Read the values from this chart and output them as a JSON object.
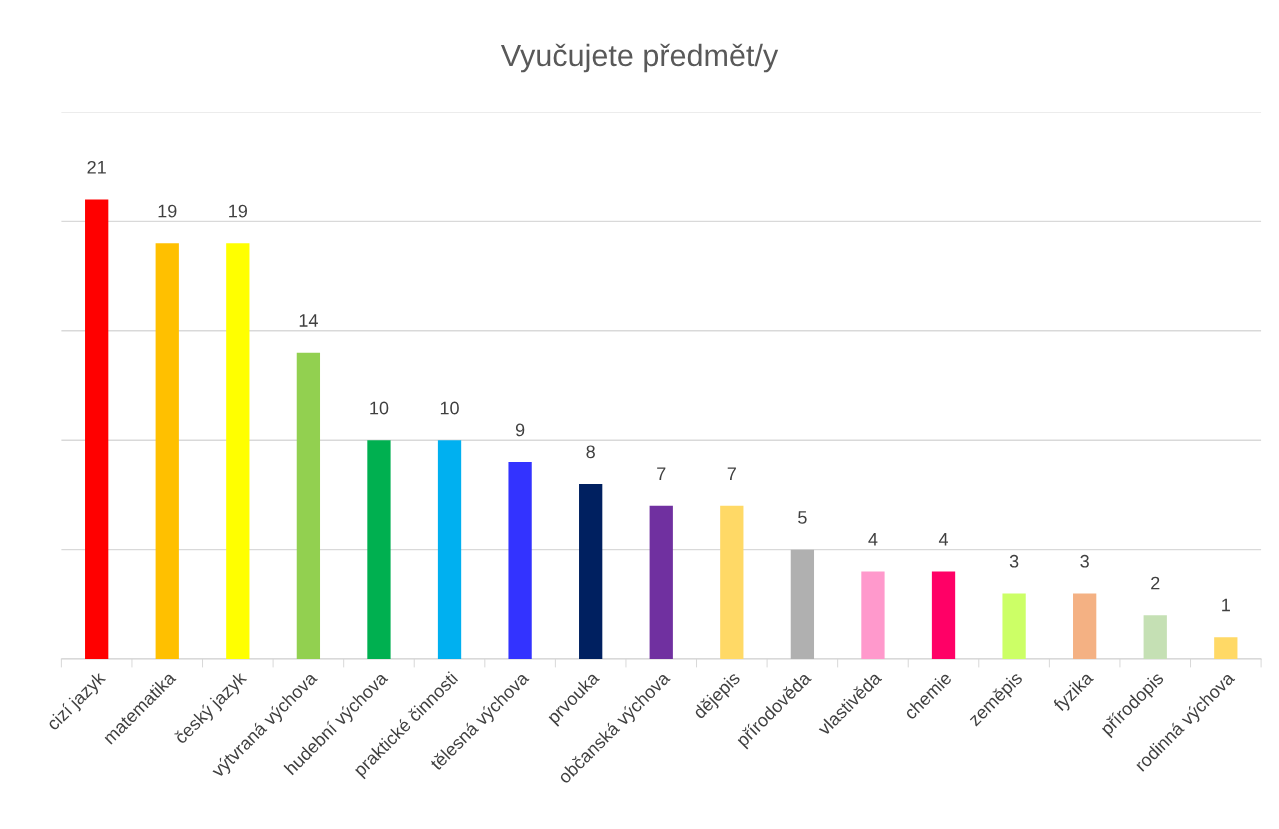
{
  "chart_data": {
    "type": "bar",
    "title": "Vyučujete předmět/y",
    "categories": [
      "cizí jazyk",
      "matematika",
      "český jazyk",
      "výtvraná výchova",
      "hudební výchova",
      "praktické činnosti",
      "tělesná výchova",
      "prvouka",
      "občanská výchova",
      "dějepis",
      "přírodověda",
      "vlastivěda",
      "chemie",
      "zeměpis",
      "fyzika",
      "přírodopis",
      "rodinná výchova"
    ],
    "values": [
      21,
      19,
      19,
      14,
      10,
      10,
      9,
      8,
      7,
      7,
      5,
      4,
      4,
      3,
      3,
      2,
      1
    ],
    "colors": [
      "#ff0000",
      "#ffc000",
      "#ffff00",
      "#92d050",
      "#00b050",
      "#00b0f0",
      "#3333ff",
      "#002060",
      "#7030a0",
      "#ffd966",
      "#b0b0b0",
      "#ff99cc",
      "#ff0066",
      "#ccff66",
      "#f4b183",
      "#c5e0b4",
      "#ffd966"
    ],
    "ylim": [
      0,
      25
    ],
    "yticks": [
      {
        "value": 0,
        "label": null
      },
      {
        "value": 5,
        "label": null
      },
      {
        "value": 10,
        "label": null
      },
      {
        "value": 15,
        "label": null
      },
      {
        "value": 20,
        "label": null
      },
      {
        "value": 25,
        "label": null
      }
    ],
    "tick_labels": "x",
    "grid": "y",
    "data_labels": true
  }
}
